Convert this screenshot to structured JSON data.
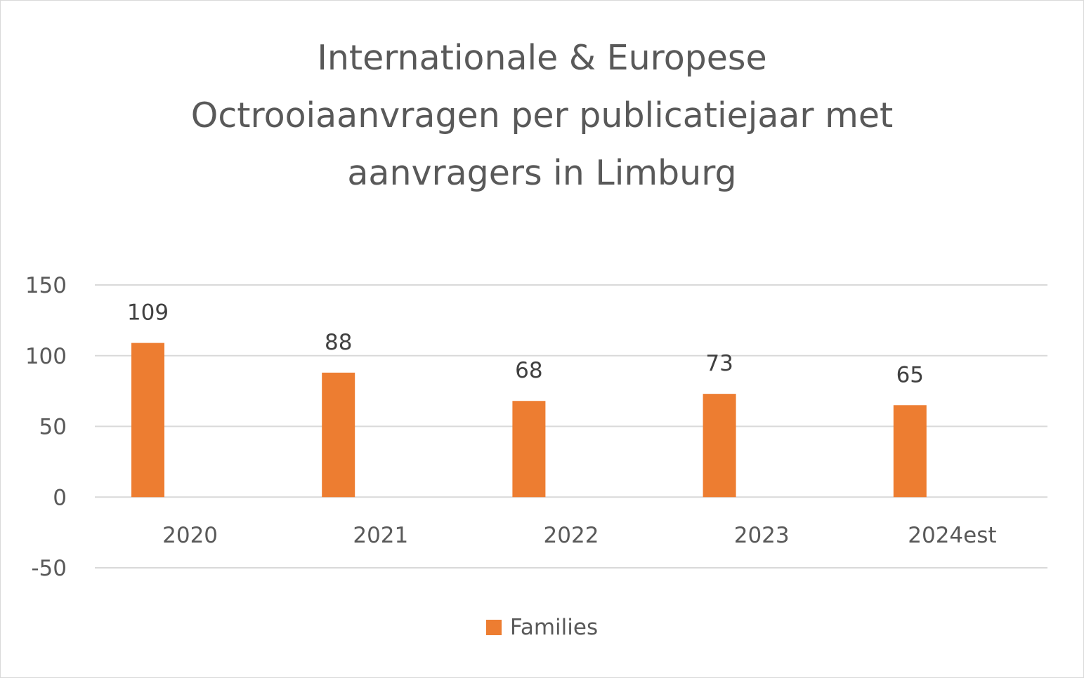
{
  "chart_data": {
    "type": "bar",
    "title_lines": [
      "Internationale & Europese",
      "Octrooiaanvragen per publicatiejaar met",
      "aanvragers in Limburg"
    ],
    "categories": [
      "2020",
      "2021",
      "2022",
      "2023",
      "2024est"
    ],
    "series": [
      {
        "name": "Families",
        "values": [
          109,
          88,
          68,
          73,
          65
        ],
        "color": "#ed7d31"
      }
    ],
    "yticks": [
      "150",
      "100",
      "50",
      "0",
      "-50"
    ],
    "ylim": [
      -50,
      150
    ],
    "grid": true,
    "legend": "bottom"
  }
}
